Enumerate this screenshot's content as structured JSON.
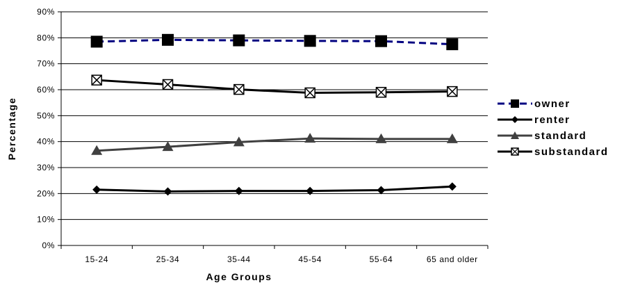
{
  "chart_data": {
    "type": "line",
    "xlabel": "Age Groups",
    "ylabel": "Percentage",
    "categories": [
      "15-24",
      "25-34",
      "35-44",
      "45-54",
      "55-64",
      "65 and older"
    ],
    "y_ticks": [
      "0%",
      "10%",
      "20%",
      "30%",
      "40%",
      "50%",
      "60%",
      "70%",
      "80%",
      "90%"
    ],
    "ylim": [
      0,
      90
    ],
    "grid": true,
    "legend_position": "right",
    "series": [
      {
        "name": "owner",
        "values": [
          78.5,
          79.2,
          79.0,
          78.8,
          78.7,
          77.5
        ],
        "color": "#000080",
        "line_style": "dashed",
        "marker": "square"
      },
      {
        "name": "renter",
        "values": [
          21.5,
          20.8,
          21.0,
          21.0,
          21.3,
          22.7
        ],
        "color": "#000000",
        "line_style": "solid",
        "marker": "diamond"
      },
      {
        "name": "standard",
        "values": [
          36.5,
          38.0,
          39.8,
          41.2,
          41.0,
          41.0
        ],
        "color": "#404040",
        "line_style": "solid",
        "marker": "triangle"
      },
      {
        "name": "substandard",
        "values": [
          63.7,
          62.0,
          60.1,
          58.8,
          59.0,
          59.3
        ],
        "color": "#000000",
        "line_style": "solid",
        "marker": "square-x"
      }
    ]
  }
}
